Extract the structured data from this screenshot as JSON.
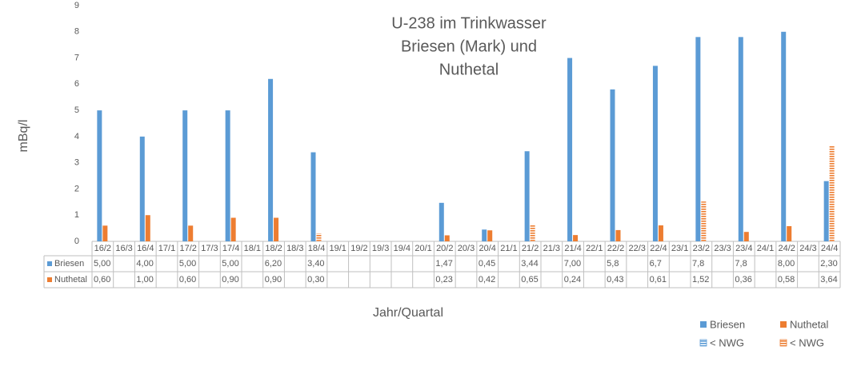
{
  "chart_data": {
    "type": "bar",
    "title": [
      "U-238 im Trinkwasser",
      "Briesen (Mark) und",
      "Nuthetal"
    ],
    "y_label": "mBq/l",
    "x_label": "Jahr/Quartal",
    "categories": [
      "16/2",
      "16/3",
      "16/4",
      "17/1",
      "17/2",
      "17/3",
      "17/4",
      "18/1",
      "18/2",
      "18/3",
      "18/4",
      "19/1",
      "19/2",
      "19/3",
      "19/4",
      "20/1",
      "20/2",
      "20/3",
      "20/4",
      "21/1",
      "21/2",
      "21/3",
      "21/4",
      "22/1",
      "22/2",
      "22/3",
      "22/4",
      "23/1",
      "23/2",
      "23/3",
      "23/4",
      "24/1",
      "24/2",
      "24/3",
      "24/4"
    ],
    "series": [
      {
        "name": "Briesen",
        "color": "#5b9bd5",
        "values": [
          5.0,
          null,
          4.0,
          null,
          5.0,
          null,
          5.0,
          null,
          6.2,
          null,
          3.4,
          null,
          null,
          null,
          null,
          null,
          1.47,
          null,
          0.45,
          null,
          3.44,
          null,
          7.0,
          null,
          5.8,
          null,
          6.7,
          null,
          7.8,
          null,
          7.8,
          null,
          8.0,
          null,
          2.3
        ],
        "value_labels": [
          "5,00",
          null,
          "4,00",
          null,
          "5,00",
          null,
          "5,00",
          null,
          "6,20",
          null,
          "3,40",
          null,
          null,
          null,
          null,
          null,
          "1,47",
          null,
          "0,45",
          null,
          "3,44",
          null,
          "7,00",
          null,
          "5,8",
          null,
          "6,7",
          null,
          "7,8",
          null,
          "7,8",
          null,
          "8,00",
          null,
          "2,30"
        ],
        "below_nwg": []
      },
      {
        "name": "Nuthetal",
        "color": "#ed7d31",
        "values": [
          0.6,
          null,
          1.0,
          null,
          0.6,
          null,
          0.9,
          null,
          0.9,
          null,
          0.3,
          null,
          null,
          null,
          null,
          null,
          0.23,
          null,
          0.42,
          null,
          0.65,
          null,
          0.24,
          null,
          0.43,
          null,
          0.61,
          null,
          1.52,
          null,
          0.36,
          null,
          0.58,
          null,
          3.64
        ],
        "value_labels": [
          "0,60",
          null,
          "1,00",
          null,
          "0,60",
          null,
          "0,90",
          null,
          "0,90",
          null,
          "0,30",
          null,
          null,
          null,
          null,
          null,
          "0,23",
          null,
          "0,42",
          null,
          "0,65",
          null,
          "0,24",
          null,
          "0,43",
          null,
          "0,61",
          null,
          "1,52",
          null,
          "0,36",
          null,
          "0,58",
          null,
          "3,64"
        ],
        "below_nwg": [
          10,
          20,
          28,
          34
        ]
      }
    ],
    "nwg_label": "< NWG",
    "ylim": [
      0,
      9
    ],
    "yticks": [
      0,
      1,
      2,
      3,
      4,
      5,
      6,
      7,
      8,
      9
    ],
    "grid": false
  }
}
